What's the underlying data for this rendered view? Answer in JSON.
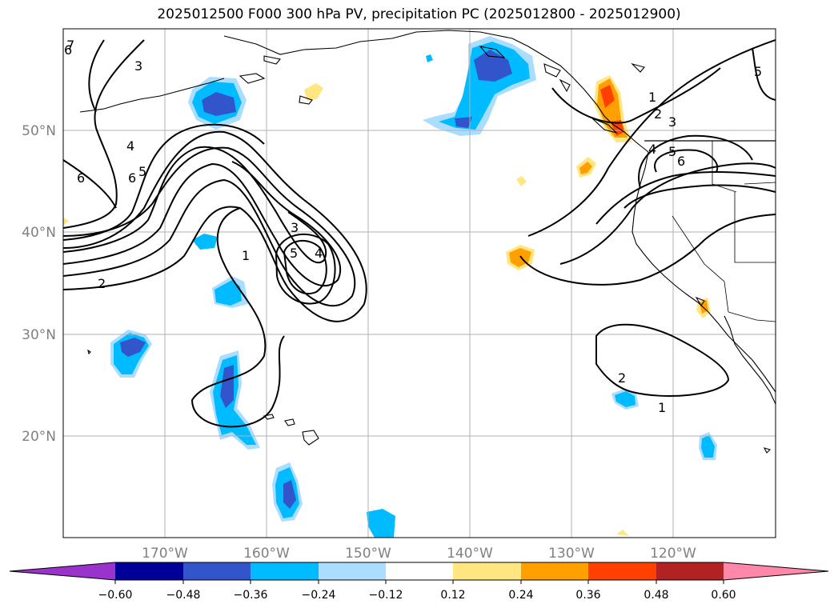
{
  "title": "2025012500 F000 300 hPa PV, precipitation PC (2025012800 - 2025012900)",
  "lat_labels": [
    "50°N",
    "40°N",
    "30°N",
    "20°N"
  ],
  "lon_labels": [
    "170°W",
    "160°W",
    "150°W",
    "140°W",
    "130°W",
    "120°W"
  ],
  "colorbar": {
    "tick_labels": [
      "−0.60",
      "−0.48",
      "−0.36",
      "−0.24",
      "−0.12",
      "0.12",
      "0.24",
      "0.36",
      "0.48",
      "0.60"
    ],
    "colors": [
      "#9933cc",
      "#000099",
      "#3355cc",
      "#00bbff",
      "#aaddff",
      "#ffffff",
      "#ffe680",
      "#ffa000",
      "#ff4000",
      "#b22222",
      "#ff88aa"
    ]
  },
  "contour_labels": [
    "6",
    "7",
    "3",
    "4",
    "5",
    "6",
    "6",
    "2",
    "1",
    "3",
    "4",
    "5",
    "1",
    "2",
    "3",
    "4",
    "5",
    "6",
    "5",
    "2",
    "1"
  ],
  "colors": {
    "land_outline": "#000000",
    "grid": "#b0b0b0",
    "neg_dark": "#3355cc",
    "neg_mid": "#00bbff",
    "neg_light": "#aaddff",
    "pos_light": "#ffe680",
    "pos_mid": "#ffa000",
    "pos_dark": "#ff4000"
  }
}
